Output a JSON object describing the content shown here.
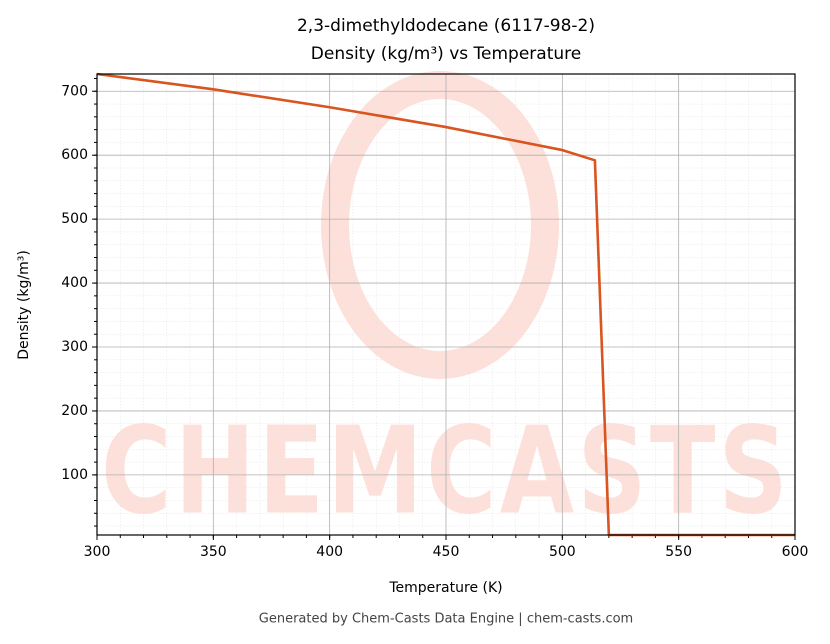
{
  "chart_data": {
    "type": "line",
    "title": "2,3-dimethyldodecane (6117-98-2)",
    "subtitle": "Density (kg/m³) vs Temperature",
    "x_label": "Temperature (K)",
    "y_label": "Density (kg/m³)",
    "watermark": "CHEMCASTS",
    "footer": "Generated by Chem-Casts Data Engine | chem-casts.com",
    "x": [
      300,
      350,
      400,
      450,
      500,
      514,
      520,
      600
    ],
    "series": [
      {
        "name": "Density",
        "color": "#d9541e",
        "values": [
          727,
          703,
          675,
          644,
          608,
          592,
          6,
          6
        ]
      }
    ],
    "xlim": [
      300,
      600
    ],
    "xticks": [
      300,
      350,
      400,
      450,
      500,
      550,
      600
    ],
    "ylim": [
      6,
      727
    ],
    "yticks": [
      100,
      200,
      300,
      400,
      500,
      600,
      700
    ],
    "grid": true
  }
}
